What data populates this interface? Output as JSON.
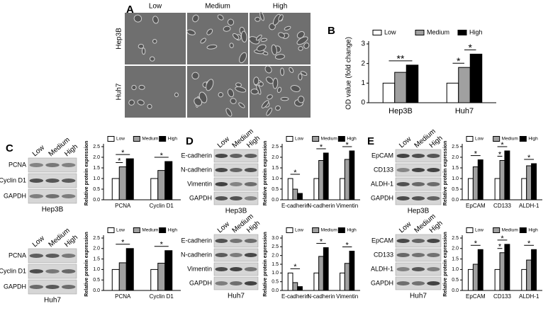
{
  "panel_letters": [
    "A",
    "B",
    "C",
    "D",
    "E"
  ],
  "panel_a": {
    "columns": [
      "Low",
      "Medium",
      "High"
    ],
    "rows": [
      "Hep3B",
      "Huh7"
    ]
  },
  "blots": [
    {
      "columns": [
        "Low",
        "Medium",
        "High"
      ],
      "rows": [
        "PCNA",
        "Cyclin D1",
        "GAPDH"
      ],
      "cell_line": "Hep3B"
    },
    {
      "columns": [
        "Low",
        "Medium",
        "High"
      ],
      "rows": [
        "PCNA",
        "Cyclin D1",
        "GAPDH"
      ],
      "cell_line": "Huh7"
    },
    {
      "columns": [
        "Low",
        "Medium",
        "High"
      ],
      "rows": [
        "E-cadherin",
        "N-cadherin",
        "Vimentin",
        "GAPDH"
      ],
      "cell_line": "Hep3B"
    },
    {
      "columns": [
        "Low",
        "Medium",
        "High"
      ],
      "rows": [
        "E-cadherin",
        "N-cadherin",
        "Vimentin",
        "GAPDH"
      ],
      "cell_line": "Huh7"
    },
    {
      "columns": [
        "Low",
        "Medium",
        "High"
      ],
      "rows": [
        "EpCAM",
        "CD133",
        "ALDH-1",
        "GAPDH"
      ],
      "cell_line": "Hep3B"
    },
    {
      "columns": [
        "Low",
        "Medium",
        "High"
      ],
      "rows": [
        "EpCAM",
        "CD133",
        "ALDH-1",
        "GAPDH"
      ],
      "cell_line": "Huh7"
    }
  ],
  "chart_data": [
    {
      "type": "bar",
      "ylabel": "OD value (fold change)",
      "categories": [
        "Hep3B",
        "Huh7"
      ],
      "series": [
        {
          "name": "Low",
          "color": "#ffffff",
          "values": [
            1.0,
            1.0
          ]
        },
        {
          "name": "Medium",
          "color": "#a0a0a0",
          "values": [
            1.55,
            1.8
          ]
        },
        {
          "name": "High",
          "color": "#000000",
          "values": [
            1.92,
            2.48
          ]
        }
      ],
      "ylim": [
        0,
        3
      ],
      "yticks": [
        0,
        1,
        2,
        3
      ],
      "annotations": [
        "**",
        "*",
        "*"
      ]
    },
    {
      "type": "bar",
      "ylabel": "Relative protein expression",
      "categories": [
        "PCNA",
        "Cyclin D1"
      ],
      "series": [
        {
          "name": "Low",
          "color": "#ffffff",
          "values": [
            1.0,
            1.0
          ]
        },
        {
          "name": "Medium",
          "color": "#a0a0a0",
          "values": [
            1.55,
            1.38
          ]
        },
        {
          "name": "High",
          "color": "#000000",
          "values": [
            1.93,
            1.8
          ]
        }
      ],
      "ylim": [
        0,
        2.5
      ],
      "yticks": [
        {
          "value": 0,
          "label": "0.0"
        },
        {
          "value": 0.5,
          "label": "0.5"
        },
        {
          "value": 1,
          "label": "1.0"
        },
        {
          "value": 1.5,
          "label": "1.5"
        },
        {
          "value": 2,
          "label": "2.0"
        },
        {
          "value": 2.5,
          "label": "2.5"
        }
      ],
      "annotations": [
        "*",
        "*",
        "*"
      ]
    },
    {
      "type": "bar",
      "ylabel": "Relative protein expression",
      "categories": [
        "PCNA",
        "Cyclin D1"
      ],
      "series": [
        {
          "name": "Low",
          "color": "#ffffff",
          "values": [
            1.0,
            1.0
          ]
        },
        {
          "name": "Medium",
          "color": "#a0a0a0",
          "values": [
            1.32,
            1.3
          ]
        },
        {
          "name": "High",
          "color": "#000000",
          "values": [
            2.0,
            1.9
          ]
        }
      ],
      "ylim": [
        0,
        2.5
      ],
      "yticks": [
        {
          "value": 0,
          "label": "0.0"
        },
        {
          "value": 0.5,
          "label": "0.5"
        },
        {
          "value": 1,
          "label": "1.0"
        },
        {
          "value": 1.5,
          "label": "1.5"
        },
        {
          "value": 2,
          "label": "2.0"
        },
        {
          "value": 2.5,
          "label": "2.5"
        }
      ],
      "annotations": [
        "*",
        "*"
      ]
    },
    {
      "type": "bar",
      "ylabel": "Relative protein expression",
      "categories": [
        "E-cadherin",
        "N-cadherin",
        "Vimentin"
      ],
      "series": [
        {
          "name": "Low",
          "color": "#ffffff",
          "values": [
            1.0,
            1.0,
            1.0
          ]
        },
        {
          "name": "Medium",
          "color": "#a0a0a0",
          "values": [
            0.5,
            1.85,
            1.9
          ]
        },
        {
          "name": "High",
          "color": "#000000",
          "values": [
            0.3,
            2.2,
            2.3
          ]
        }
      ],
      "ylim": [
        0,
        2.5
      ],
      "yticks": [
        {
          "value": 0,
          "label": "0.0"
        },
        {
          "value": 0.5,
          "label": "0.5"
        },
        {
          "value": 1,
          "label": "1.0"
        },
        {
          "value": 1.5,
          "label": "1.5"
        },
        {
          "value": 2,
          "label": "2.0"
        },
        {
          "value": 2.5,
          "label": "2.5"
        }
      ],
      "annotations": [
        "*",
        "*",
        "*"
      ]
    },
    {
      "type": "bar",
      "ylabel": "Relative protein expression",
      "categories": [
        "E-cadherin",
        "N-cadherin",
        "Vimentin"
      ],
      "series": [
        {
          "name": "Low",
          "color": "#ffffff",
          "values": [
            1.0,
            1.0,
            1.0
          ]
        },
        {
          "name": "Medium",
          "color": "#a0a0a0",
          "values": [
            0.45,
            1.95,
            1.55
          ]
        },
        {
          "name": "High",
          "color": "#000000",
          "values": [
            0.22,
            2.45,
            2.25
          ]
        }
      ],
      "ylim": [
        0,
        3
      ],
      "yticks": [
        {
          "value": 0,
          "label": "0.0"
        },
        {
          "value": 0.5,
          "label": "0.5"
        },
        {
          "value": 1,
          "label": "1.0"
        },
        {
          "value": 1.5,
          "label": "1.5"
        },
        {
          "value": 2,
          "label": "2.0"
        },
        {
          "value": 2.5,
          "label": "2.5"
        },
        {
          "value": 3,
          "label": "3.0"
        }
      ],
      "annotations": [
        "*",
        "*",
        "*"
      ]
    },
    {
      "type": "bar",
      "ylabel": "Relative protein expression",
      "categories": [
        "EpCAM",
        "CD133",
        "ALDH-1"
      ],
      "series": [
        {
          "name": "Low",
          "color": "#ffffff",
          "values": [
            1.0,
            1.0,
            1.0
          ]
        },
        {
          "name": "Medium",
          "color": "#a0a0a0",
          "values": [
            1.55,
            1.85,
            1.6
          ]
        },
        {
          "name": "High",
          "color": "#000000",
          "values": [
            1.88,
            2.3,
            1.7
          ]
        }
      ],
      "ylim": [
        0,
        2.5
      ],
      "yticks": [
        {
          "value": 0,
          "label": "0.0"
        },
        {
          "value": 0.5,
          "label": "0.5"
        },
        {
          "value": 1,
          "label": "1.0"
        },
        {
          "value": 1.5,
          "label": "1.5"
        },
        {
          "value": 2,
          "label": "2.0"
        },
        {
          "value": 2.5,
          "label": "2.5"
        }
      ],
      "annotations": [
        "*",
        "*",
        "*",
        "*"
      ]
    },
    {
      "type": "bar",
      "ylabel": "Relative protein expression",
      "categories": [
        "EpCAM",
        "CD133",
        "ALDH-1"
      ],
      "series": [
        {
          "name": "Low",
          "color": "#ffffff",
          "values": [
            1.0,
            1.0,
            1.0
          ]
        },
        {
          "name": "Medium",
          "color": "#a0a0a0",
          "values": [
            1.25,
            1.8,
            1.45
          ]
        },
        {
          "name": "High",
          "color": "#000000",
          "values": [
            1.95,
            2.2,
            1.95
          ]
        }
      ],
      "ylim": [
        0,
        2.5
      ],
      "yticks": [
        {
          "value": 0,
          "label": "0.0"
        },
        {
          "value": 0.5,
          "label": "0.5"
        },
        {
          "value": 1,
          "label": "1.0"
        },
        {
          "value": 1.5,
          "label": "1.5"
        },
        {
          "value": 2,
          "label": "2.0"
        },
        {
          "value": 2.5,
          "label": "2.5"
        }
      ],
      "annotations": [
        "*",
        "*",
        "*",
        "*"
      ]
    }
  ]
}
